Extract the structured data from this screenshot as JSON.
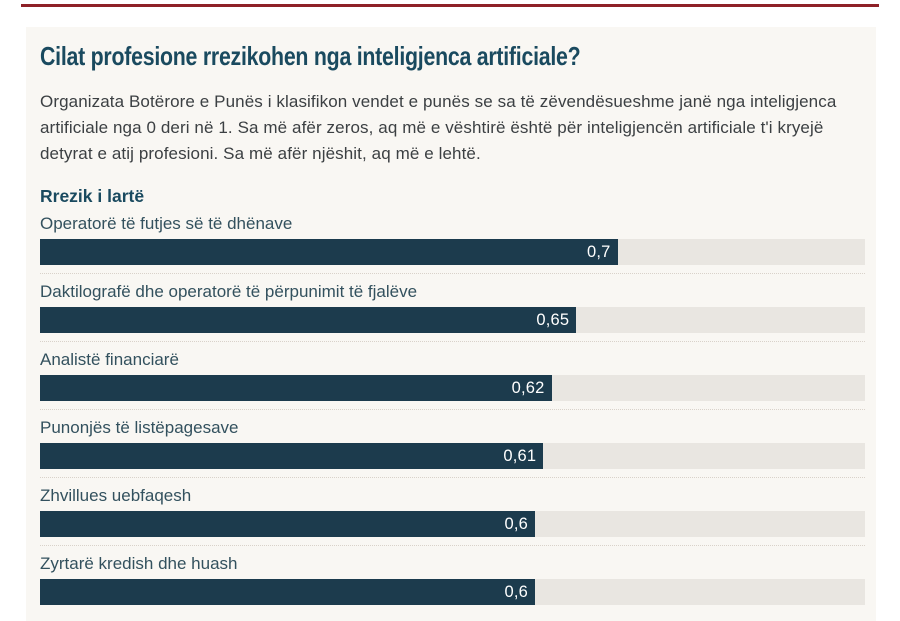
{
  "header": {
    "title": "Cilat profesione rrezikohen nga inteligjenca artificiale?",
    "description": "Organizata Botërore e Punës i klasifikon vendet e punës se sa të zëvendësueshme janë nga inteligjenca artificiale nga 0 deri në 1. Sa më afër zeros, aq më e vështirë është për inteligjencën artificiale t'i kryejë detyrat e atij profesioni. Sa më afër njëshit, aq më e lehtë."
  },
  "chart_data": {
    "type": "bar",
    "orientation": "horizontal",
    "title": "Cilat profesione rrezikohen nga inteligjenca artificiale?",
    "section_label": "Rrezik i lartë",
    "categories": [
      "Operatorë të futjes së të dhënave",
      "Daktilografë dhe operatorë të përpunimit të fjalëve",
      "Analistë financiarë",
      "Punonjës të listëpagesave",
      "Zhvillues uebfaqesh",
      "Zyrtarë kredish dhe huash"
    ],
    "values": [
      0.7,
      0.65,
      0.62,
      0.61,
      0.6,
      0.6
    ],
    "value_labels": [
      "0,7",
      "0,65",
      "0,62",
      "0,61",
      "0,6",
      "0,6"
    ],
    "xlim": [
      0,
      1
    ],
    "grid": false,
    "legend": false
  },
  "colors": {
    "accent_rule": "#8e2127",
    "card_bg": "#f9f7f3",
    "page_bg": "#ffffff",
    "title_text": "#1a4a5f",
    "body_text": "#3c4043",
    "label_text": "#33515e",
    "bar_fill": "#1c3b4d",
    "bar_track": "#e9e6e1",
    "separator": "#d9d2ca",
    "value_text": "#ffffff"
  }
}
